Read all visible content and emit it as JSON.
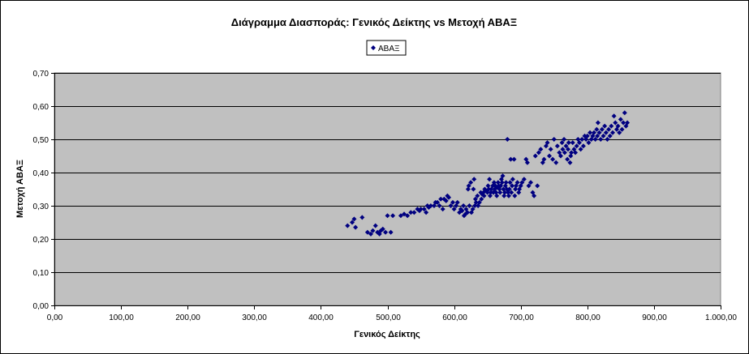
{
  "chart_data": {
    "type": "scatter",
    "title": "Διάγραμμα Διασποράς: Γενικός Δείκτης vs Μετοχή ΑΒΑΞ",
    "xlabel": "Γενικός Δείκτης",
    "ylabel": "Μετοχή ΑΒΑΞ",
    "xlim": [
      0,
      1000
    ],
    "ylim": [
      0,
      0.7
    ],
    "x_ticks": [
      0,
      100,
      200,
      300,
      400,
      500,
      600,
      700,
      800,
      900,
      1000
    ],
    "y_ticks": [
      0,
      0.1,
      0.2,
      0.3,
      0.4,
      0.5,
      0.6,
      0.7
    ],
    "x_tick_labels": [
      "0,00",
      "100,00",
      "200,00",
      "300,00",
      "400,00",
      "500,00",
      "600,00",
      "700,00",
      "800,00",
      "900,00",
      "1.000,00"
    ],
    "y_tick_labels": [
      "0,00",
      "0,10",
      "0,20",
      "0,30",
      "0,40",
      "0,50",
      "0,60",
      "0,70"
    ],
    "grid": true,
    "legend_position": "top-center",
    "plot_background": "#c0c0c0",
    "marker_color": "#000080",
    "series": [
      {
        "name": "ΑΒΑΞ",
        "points": [
          [
            440,
            0.24
          ],
          [
            447,
            0.25
          ],
          [
            450,
            0.26
          ],
          [
            452,
            0.235
          ],
          [
            462,
            0.265
          ],
          [
            470,
            0.22
          ],
          [
            475,
            0.215
          ],
          [
            478,
            0.225
          ],
          [
            482,
            0.24
          ],
          [
            485,
            0.22
          ],
          [
            488,
            0.215
          ],
          [
            490,
            0.225
          ],
          [
            493,
            0.23
          ],
          [
            497,
            0.22
          ],
          [
            500,
            0.27
          ],
          [
            505,
            0.22
          ],
          [
            508,
            0.27
          ],
          [
            520,
            0.27
          ],
          [
            525,
            0.275
          ],
          [
            530,
            0.27
          ],
          [
            535,
            0.28
          ],
          [
            540,
            0.28
          ],
          [
            545,
            0.29
          ],
          [
            548,
            0.285
          ],
          [
            550,
            0.29
          ],
          [
            555,
            0.29
          ],
          [
            558,
            0.28
          ],
          [
            560,
            0.3
          ],
          [
            562,
            0.295
          ],
          [
            565,
            0.3
          ],
          [
            570,
            0.3
          ],
          [
            572,
            0.31
          ],
          [
            575,
            0.31
          ],
          [
            578,
            0.3
          ],
          [
            580,
            0.32
          ],
          [
            583,
            0.29
          ],
          [
            585,
            0.32
          ],
          [
            588,
            0.315
          ],
          [
            590,
            0.33
          ],
          [
            592,
            0.325
          ],
          [
            595,
            0.3
          ],
          [
            598,
            0.31
          ],
          [
            600,
            0.29
          ],
          [
            603,
            0.3
          ],
          [
            605,
            0.31
          ],
          [
            608,
            0.28
          ],
          [
            610,
            0.29
          ],
          [
            612,
            0.285
          ],
          [
            614,
            0.3
          ],
          [
            615,
            0.27
          ],
          [
            617,
            0.275
          ],
          [
            618,
            0.29
          ],
          [
            620,
            0.28
          ],
          [
            621,
            0.35
          ],
          [
            622,
            0.36
          ],
          [
            623,
            0.3
          ],
          [
            625,
            0.37
          ],
          [
            626,
            0.28
          ],
          [
            628,
            0.29
          ],
          [
            629,
            0.35
          ],
          [
            630,
            0.38
          ],
          [
            631,
            0.3
          ],
          [
            632,
            0.32
          ],
          [
            633,
            0.31
          ],
          [
            635,
            0.33
          ],
          [
            636,
            0.3
          ],
          [
            638,
            0.31
          ],
          [
            640,
            0.34
          ],
          [
            641,
            0.32
          ],
          [
            642,
            0.335
          ],
          [
            644,
            0.34
          ],
          [
            645,
            0.33
          ],
          [
            646,
            0.35
          ],
          [
            648,
            0.345
          ],
          [
            650,
            0.34
          ],
          [
            651,
            0.36
          ],
          [
            652,
            0.35
          ],
          [
            653,
            0.38
          ],
          [
            654,
            0.33
          ],
          [
            655,
            0.34
          ],
          [
            656,
            0.35
          ],
          [
            658,
            0.36
          ],
          [
            659,
            0.34
          ],
          [
            660,
            0.37
          ],
          [
            661,
            0.35
          ],
          [
            662,
            0.36
          ],
          [
            663,
            0.34
          ],
          [
            664,
            0.33
          ],
          [
            665,
            0.355
          ],
          [
            666,
            0.37
          ],
          [
            667,
            0.36
          ],
          [
            668,
            0.35
          ],
          [
            669,
            0.34
          ],
          [
            670,
            0.36
          ],
          [
            671,
            0.38
          ],
          [
            672,
            0.37
          ],
          [
            673,
            0.39
          ],
          [
            674,
            0.35
          ],
          [
            675,
            0.33
          ],
          [
            676,
            0.34
          ],
          [
            677,
            0.36
          ],
          [
            678,
            0.37
          ],
          [
            679,
            0.35
          ],
          [
            680,
            0.5
          ],
          [
            681,
            0.34
          ],
          [
            682,
            0.33
          ],
          [
            683,
            0.35
          ],
          [
            684,
            0.37
          ],
          [
            685,
            0.44
          ],
          [
            686,
            0.34
          ],
          [
            687,
            0.36
          ],
          [
            688,
            0.38
          ],
          [
            690,
            0.44
          ],
          [
            691,
            0.33
          ],
          [
            692,
            0.35
          ],
          [
            693,
            0.36
          ],
          [
            695,
            0.37
          ],
          [
            697,
            0.34
          ],
          [
            698,
            0.35
          ],
          [
            700,
            0.36
          ],
          [
            702,
            0.37
          ],
          [
            705,
            0.38
          ],
          [
            708,
            0.44
          ],
          [
            710,
            0.43
          ],
          [
            712,
            0.36
          ],
          [
            715,
            0.37
          ],
          [
            718,
            0.34
          ],
          [
            720,
            0.33
          ],
          [
            722,
            0.45
          ],
          [
            725,
            0.36
          ],
          [
            727,
            0.46
          ],
          [
            730,
            0.47
          ],
          [
            733,
            0.43
          ],
          [
            735,
            0.44
          ],
          [
            738,
            0.48
          ],
          [
            740,
            0.49
          ],
          [
            743,
            0.45
          ],
          [
            745,
            0.47
          ],
          [
            748,
            0.44
          ],
          [
            750,
            0.5
          ],
          [
            753,
            0.43
          ],
          [
            755,
            0.48
          ],
          [
            758,
            0.46
          ],
          [
            760,
            0.45
          ],
          [
            762,
            0.49
          ],
          [
            763,
            0.47
          ],
          [
            765,
            0.5
          ],
          [
            766,
            0.46
          ],
          [
            768,
            0.48
          ],
          [
            770,
            0.44
          ],
          [
            771,
            0.47
          ],
          [
            772,
            0.49
          ],
          [
            774,
            0.43
          ],
          [
            775,
            0.45
          ],
          [
            776,
            0.46
          ],
          [
            778,
            0.49
          ],
          [
            780,
            0.47
          ],
          [
            782,
            0.46
          ],
          [
            784,
            0.48
          ],
          [
            786,
            0.5
          ],
          [
            788,
            0.49
          ],
          [
            790,
            0.47
          ],
          [
            792,
            0.5
          ],
          [
            794,
            0.48
          ],
          [
            796,
            0.51
          ],
          [
            798,
            0.5
          ],
          [
            800,
            0.51
          ],
          [
            802,
            0.49
          ],
          [
            804,
            0.52
          ],
          [
            806,
            0.5
          ],
          [
            808,
            0.51
          ],
          [
            810,
            0.52
          ],
          [
            812,
            0.5
          ],
          [
            814,
            0.53
          ],
          [
            815,
            0.51
          ],
          [
            816,
            0.55
          ],
          [
            818,
            0.52
          ],
          [
            820,
            0.5
          ],
          [
            822,
            0.53
          ],
          [
            824,
            0.51
          ],
          [
            826,
            0.54
          ],
          [
            828,
            0.52
          ],
          [
            830,
            0.5
          ],
          [
            832,
            0.53
          ],
          [
            834,
            0.51
          ],
          [
            836,
            0.54
          ],
          [
            838,
            0.52
          ],
          [
            840,
            0.57
          ],
          [
            842,
            0.55
          ],
          [
            844,
            0.53
          ],
          [
            846,
            0.54
          ],
          [
            848,
            0.52
          ],
          [
            850,
            0.56
          ],
          [
            852,
            0.53
          ],
          [
            854,
            0.55
          ],
          [
            856,
            0.58
          ],
          [
            858,
            0.54
          ],
          [
            860,
            0.55
          ]
        ]
      }
    ]
  }
}
